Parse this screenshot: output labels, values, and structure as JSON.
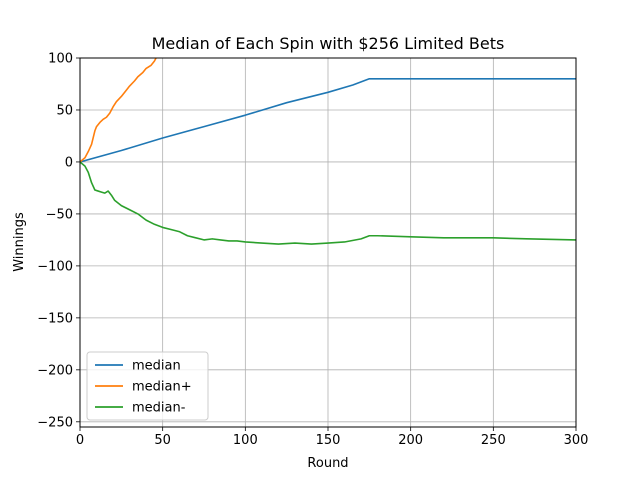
{
  "chart_data": {
    "type": "line",
    "title": "Median of Each Spin with $256 Limited Bets",
    "xlabel": "Round",
    "ylabel": "Winnings",
    "xlim": [
      0,
      300
    ],
    "ylim": [
      -255,
      100
    ],
    "xticks": [
      0,
      50,
      100,
      150,
      200,
      250,
      300
    ],
    "yticks": [
      100,
      50,
      0,
      -50,
      -100,
      -150,
      -200,
      -250
    ],
    "xtick_labels": [
      "0",
      "50",
      "100",
      "150",
      "200",
      "250",
      "300"
    ],
    "ytick_labels": [
      "100",
      "50",
      "0",
      "−50",
      "−100",
      "−150",
      "−200",
      "−250"
    ],
    "grid": true,
    "legend_position": "lower-left",
    "series": [
      {
        "name": "median",
        "color": "#1f77b4",
        "x": [
          0,
          25,
          50,
          75,
          100,
          125,
          150,
          165,
          175,
          200,
          250,
          300
        ],
        "y": [
          0,
          11,
          23,
          34,
          45,
          57,
          67,
          74,
          80,
          80,
          80,
          80
        ]
      },
      {
        "name": "median+",
        "color": "#ff7f0e",
        "x": [
          0,
          3,
          5,
          7,
          9,
          10,
          12,
          14,
          16,
          18,
          20,
          22,
          25,
          28,
          30,
          33,
          35,
          38,
          40,
          43,
          45,
          46
        ],
        "y": [
          0,
          4,
          10,
          17,
          30,
          34,
          38,
          41,
          43,
          47,
          53,
          58,
          63,
          69,
          73,
          78,
          82,
          86,
          90,
          93,
          97,
          100
        ]
      },
      {
        "name": "median-",
        "color": "#2ca02c",
        "x": [
          0,
          3,
          5,
          7,
          9,
          11,
          13,
          15,
          17,
          19,
          21,
          25,
          30,
          35,
          40,
          45,
          50,
          55,
          60,
          65,
          70,
          75,
          80,
          85,
          90,
          95,
          100,
          110,
          120,
          130,
          140,
          150,
          160,
          170,
          175,
          180,
          200,
          220,
          250,
          270,
          300
        ],
        "y": [
          0,
          -4,
          -10,
          -20,
          -27,
          -28,
          -29,
          -30,
          -28,
          -32,
          -37,
          -42,
          -46,
          -50,
          -56,
          -60,
          -63,
          -65,
          -67,
          -71,
          -73,
          -75,
          -74,
          -75,
          -76,
          -76,
          -77,
          -78,
          -79,
          -78,
          -79,
          -78,
          -77,
          -74,
          -71,
          -71,
          -72,
          -73,
          -73,
          -74,
          -75
        ]
      }
    ]
  }
}
